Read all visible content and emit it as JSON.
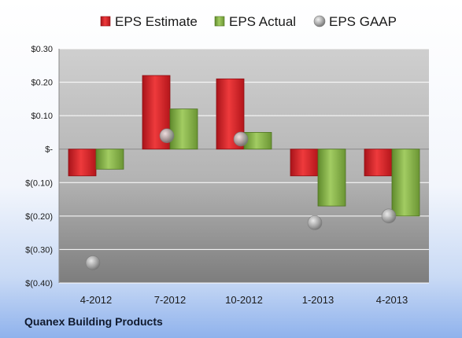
{
  "chart_data": {
    "type": "bar",
    "categories": [
      "4-2012",
      "7-2012",
      "10-2012",
      "1-2013",
      "4-2013"
    ],
    "series": [
      {
        "name": "EPS Estimate",
        "kind": "bar",
        "color": "#e0262a",
        "values": [
          -0.08,
          0.22,
          0.21,
          -0.08,
          -0.08
        ]
      },
      {
        "name": "EPS Actual",
        "kind": "bar",
        "color": "#8cbc4a",
        "values": [
          -0.06,
          0.12,
          0.05,
          -0.17,
          -0.2
        ]
      },
      {
        "name": "EPS GAAP",
        "kind": "marker",
        "color": "#a9a9a9",
        "values": [
          -0.34,
          0.04,
          0.03,
          -0.22,
          -0.2
        ]
      }
    ],
    "y_ticks": [
      {
        "value": 0.3,
        "label": "$0.30"
      },
      {
        "value": 0.2,
        "label": "$0.20"
      },
      {
        "value": 0.1,
        "label": "$0.10"
      },
      {
        "value": 0.0,
        "label": "$-"
      },
      {
        "value": -0.1,
        "label": "$(0.10)"
      },
      {
        "value": -0.2,
        "label": "$(0.20)"
      },
      {
        "value": -0.3,
        "label": "$(0.30)"
      },
      {
        "value": -0.4,
        "label": "$(0.40)"
      }
    ],
    "ylim": [
      -0.4,
      0.3
    ],
    "grid": true,
    "legend_position": "top"
  },
  "footer": {
    "company": "Quanex Building Products"
  }
}
